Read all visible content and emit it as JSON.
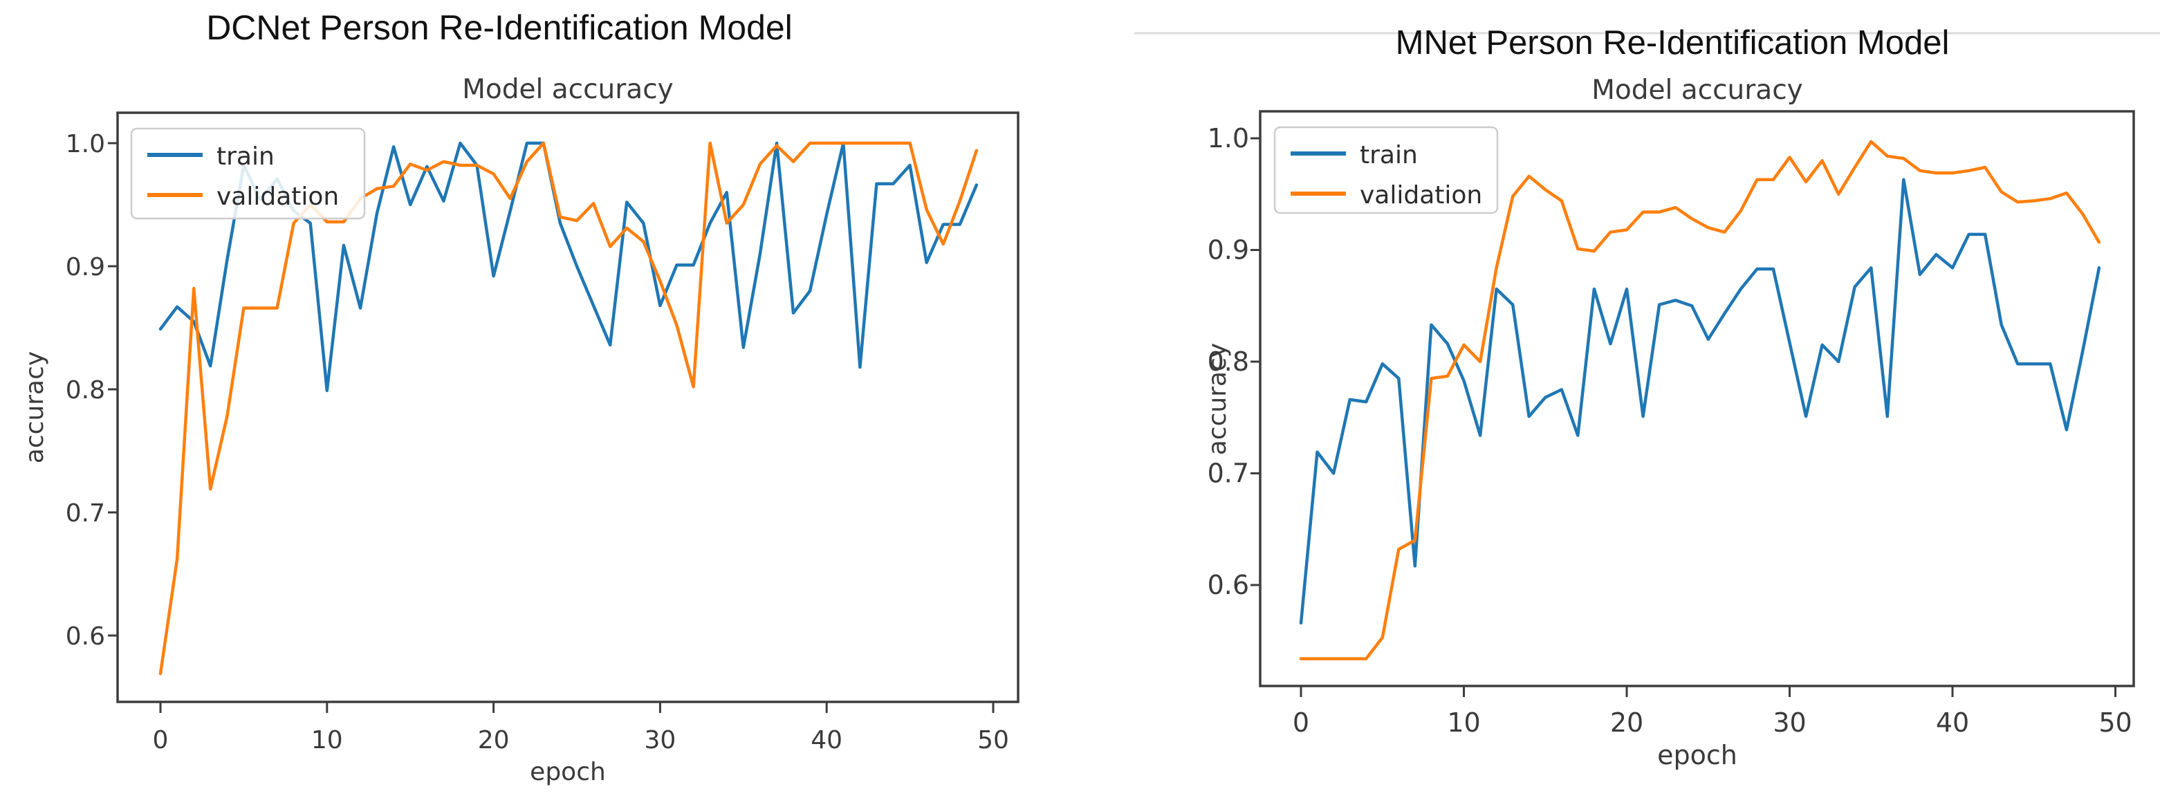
{
  "page": {
    "background": "#ffffff"
  },
  "colors": {
    "train": "#1f77b4",
    "validation": "#ff7f0e",
    "axis_text": "#3a3a3a",
    "spine": "#3d3d3d",
    "legend_border": "#cccccc",
    "artifact_line": "#dcdcdc"
  },
  "chart_data": [
    {
      "type": "line",
      "title": "DCNet Person Re-Identification Model",
      "subtitle": "Model accuracy",
      "xlabel": "epoch",
      "ylabel": "accuracy",
      "grid": false,
      "legend_position": "upper left",
      "legend": [
        "train",
        "validation"
      ],
      "x_ticks": [
        0,
        10,
        20,
        30,
        40,
        50
      ],
      "y_ticks": [
        1.0,
        0.9,
        0.8,
        0.7,
        0.6
      ],
      "y_tick_labels": [
        "1.0",
        "0.9",
        "0.8",
        "0.7",
        "0.6"
      ],
      "x_tick_labels": [
        "0",
        "10",
        "20",
        "30",
        "40",
        "50"
      ],
      "xlim": [
        -2.6,
        51.5
      ],
      "ylim": [
        0.545,
        1.026
      ],
      "x": [
        0,
        1,
        2,
        3,
        4,
        5,
        6,
        7,
        8,
        9,
        10,
        11,
        12,
        13,
        14,
        15,
        16,
        17,
        18,
        19,
        20,
        21,
        22,
        23,
        24,
        25,
        26,
        27,
        28,
        29,
        30,
        31,
        32,
        33,
        34,
        35,
        36,
        37,
        38,
        39,
        40,
        41,
        42,
        43,
        44,
        45,
        46,
        47,
        48,
        49
      ],
      "series": [
        {
          "name": "train",
          "color": "#1f77b4",
          "values": [
            0.849,
            0.867,
            0.855,
            0.819,
            0.905,
            0.982,
            0.954,
            0.971,
            0.945,
            0.935,
            0.799,
            0.917,
            0.866,
            0.943,
            0.997,
            0.95,
            0.981,
            0.953,
            1.0,
            0.982,
            0.892,
            0.945,
            1.0,
            1.0,
            0.935,
            0.9,
            0.868,
            0.836,
            0.952,
            0.935,
            0.868,
            0.901,
            0.901,
            0.935,
            0.96,
            0.834,
            0.91,
            1.0,
            0.862,
            0.88,
            0.942,
            1.0,
            0.818,
            0.967,
            0.967,
            0.982,
            0.903,
            0.934,
            0.934,
            0.966
          ]
        },
        {
          "name": "validation",
          "color": "#ff7f0e",
          "values": [
            0.569,
            0.662,
            0.882,
            0.719,
            0.778,
            0.866,
            0.866,
            0.866,
            0.935,
            0.95,
            0.936,
            0.936,
            0.955,
            0.963,
            0.965,
            0.983,
            0.978,
            0.985,
            0.982,
            0.982,
            0.975,
            0.955,
            0.985,
            1.0,
            0.94,
            0.937,
            0.951,
            0.916,
            0.931,
            0.92,
            0.888,
            0.852,
            0.802,
            1.0,
            0.935,
            0.95,
            0.983,
            0.998,
            0.985,
            1.0,
            1.0,
            1.0,
            1.0,
            1.0,
            1.0,
            1.0,
            0.946,
            0.918,
            0.953,
            0.994
          ]
        }
      ]
    },
    {
      "type": "line",
      "title": "MNet Person Re-Identification Model",
      "subtitle": "Model accuracy",
      "xlabel": "epoch",
      "ylabel": "accuracy",
      "grid": false,
      "legend_position": "upper left",
      "legend": [
        "train",
        "validation"
      ],
      "x_ticks": [
        0,
        10,
        20,
        30,
        40,
        50
      ],
      "y_ticks": [
        1.0,
        0.9,
        0.8,
        0.7,
        0.6
      ],
      "y_tick_labels": [
        "1.0",
        "0.9",
        "0.8",
        "0.7",
        "0.6"
      ],
      "x_tick_labels": [
        "0",
        "10",
        "20",
        "30",
        "40",
        "50"
      ],
      "xlim": [
        -2.5,
        51.1
      ],
      "ylim": [
        0.51,
        1.025
      ],
      "x": [
        0,
        1,
        2,
        3,
        4,
        5,
        6,
        7,
        8,
        9,
        10,
        11,
        12,
        13,
        14,
        15,
        16,
        17,
        18,
        19,
        20,
        21,
        22,
        23,
        24,
        25,
        26,
        27,
        28,
        29,
        30,
        31,
        32,
        33,
        34,
        35,
        36,
        37,
        38,
        39,
        40,
        41,
        42,
        43,
        44,
        45,
        46,
        47,
        48,
        49
      ],
      "series": [
        {
          "name": "train",
          "color": "#1f77b4",
          "values": [
            0.566,
            0.719,
            0.7,
            0.766,
            0.764,
            0.798,
            0.785,
            0.617,
            0.833,
            0.816,
            0.783,
            0.734,
            0.865,
            0.851,
            0.751,
            0.768,
            0.775,
            0.734,
            0.865,
            0.816,
            0.865,
            0.751,
            0.851,
            0.855,
            0.85,
            0.82,
            0.843,
            0.865,
            0.883,
            0.883,
            0.817,
            0.751,
            0.815,
            0.8,
            0.867,
            0.884,
            0.751,
            0.963,
            0.878,
            0.896,
            0.884,
            0.914,
            0.914,
            0.833,
            0.798,
            0.798,
            0.798,
            0.739,
            0.81,
            0.884
          ]
        },
        {
          "name": "validation",
          "color": "#ff7f0e",
          "values": [
            0.534,
            0.534,
            0.534,
            0.534,
            0.534,
            0.553,
            0.632,
            0.64,
            0.785,
            0.787,
            0.815,
            0.8,
            0.884,
            0.948,
            0.966,
            0.954,
            0.944,
            0.901,
            0.899,
            0.916,
            0.918,
            0.934,
            0.934,
            0.938,
            0.928,
            0.92,
            0.916,
            0.935,
            0.963,
            0.963,
            0.983,
            0.961,
            0.98,
            0.95,
            0.974,
            0.997,
            0.984,
            0.982,
            0.971,
            0.969,
            0.969,
            0.971,
            0.974,
            0.952,
            0.943,
            0.944,
            0.946,
            0.951,
            0.932,
            0.907
          ]
        }
      ]
    }
  ]
}
